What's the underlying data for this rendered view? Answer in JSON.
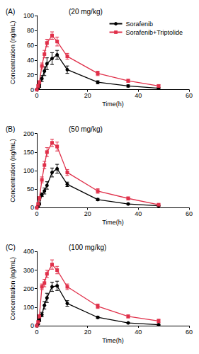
{
  "chart_data": [
    {
      "type": "line",
      "panel": "(A)",
      "title": "(20 mg/kg)",
      "xlabel": "Time(h)",
      "ylabel": "Concentration (ng/mL)",
      "x": [
        0,
        0.5,
        1,
        2,
        3,
        4,
        6,
        8,
        12,
        24,
        36,
        48
      ],
      "xlim": [
        0,
        60
      ],
      "xticks": [
        0,
        20,
        40,
        60
      ],
      "ylim": [
        0,
        100
      ],
      "yticks": [
        0,
        20,
        40,
        60,
        80,
        100
      ],
      "grid": false,
      "legend": "upper right",
      "series": [
        {
          "name": "Sorafenib",
          "color": "#000000",
          "marker": "circle",
          "values": [
            0,
            2,
            5,
            15,
            25,
            35,
            42,
            47,
            27,
            10,
            5,
            2
          ],
          "errors": [
            0,
            1,
            2,
            4,
            6,
            8,
            8,
            6,
            5,
            2,
            1.5,
            1
          ]
        },
        {
          "name": "Sorafenib+Triptolide",
          "color": "#e0304a",
          "marker": "square",
          "values": [
            0,
            5,
            10,
            32,
            48,
            63,
            73,
            65,
            45,
            22,
            12,
            5
          ],
          "errors": [
            0,
            1,
            2,
            4,
            5,
            5,
            5,
            6,
            4,
            3,
            2,
            1.5
          ]
        }
      ]
    },
    {
      "type": "line",
      "panel": "(B)",
      "title": "(50 mg/kg)",
      "xlabel": "Time(h)",
      "ylabel": "Concentration (ng/mL)",
      "x": [
        0,
        0.5,
        1,
        2,
        3,
        4,
        6,
        8,
        12,
        24,
        36,
        48
      ],
      "xlim": [
        0,
        60
      ],
      "xticks": [
        0,
        20,
        40,
        60
      ],
      "ylim": [
        0,
        200
      ],
      "yticks": [
        0,
        50,
        100,
        150,
        200
      ],
      "grid": false,
      "series": [
        {
          "name": "Sorafenib",
          "color": "#000000",
          "marker": "circle",
          "values": [
            0,
            5,
            10,
            35,
            45,
            60,
            95,
            105,
            63,
            22,
            10,
            5
          ],
          "errors": [
            0,
            2,
            3,
            5,
            8,
            10,
            12,
            12,
            6,
            3,
            2,
            1
          ]
        },
        {
          "name": "Sorafenib+Triptolide",
          "color": "#e0304a",
          "marker": "square",
          "values": [
            0,
            10,
            25,
            75,
            115,
            150,
            175,
            165,
            95,
            45,
            25,
            8
          ],
          "errors": [
            0,
            3,
            5,
            8,
            10,
            12,
            10,
            12,
            8,
            6,
            4,
            2
          ]
        }
      ]
    },
    {
      "type": "line",
      "panel": "(C)",
      "title": "(100 mg/kg)",
      "xlabel": "Time(h)",
      "ylabel": "Concentration (ng/mL)",
      "x": [
        0,
        0.5,
        1,
        2,
        3,
        4,
        6,
        8,
        12,
        24,
        36,
        48
      ],
      "xlim": [
        0,
        60
      ],
      "xticks": [
        0,
        20,
        40,
        60
      ],
      "ylim": [
        0,
        400
      ],
      "yticks": [
        0,
        100,
        200,
        300,
        400
      ],
      "grid": false,
      "series": [
        {
          "name": "Sorafenib",
          "color": "#000000",
          "marker": "circle",
          "values": [
            0,
            10,
            30,
            60,
            110,
            150,
            210,
            215,
            120,
            45,
            15,
            5
          ],
          "errors": [
            0,
            4,
            8,
            12,
            20,
            25,
            25,
            25,
            15,
            6,
            3,
            2
          ]
        },
        {
          "name": "Sorafenib+Triptolide",
          "color": "#e0304a",
          "marker": "square",
          "values": [
            0,
            20,
            50,
            210,
            230,
            280,
            330,
            300,
            210,
            105,
            50,
            25
          ],
          "errors": [
            0,
            5,
            10,
            15,
            20,
            20,
            25,
            20,
            15,
            12,
            8,
            10
          ]
        }
      ]
    }
  ]
}
